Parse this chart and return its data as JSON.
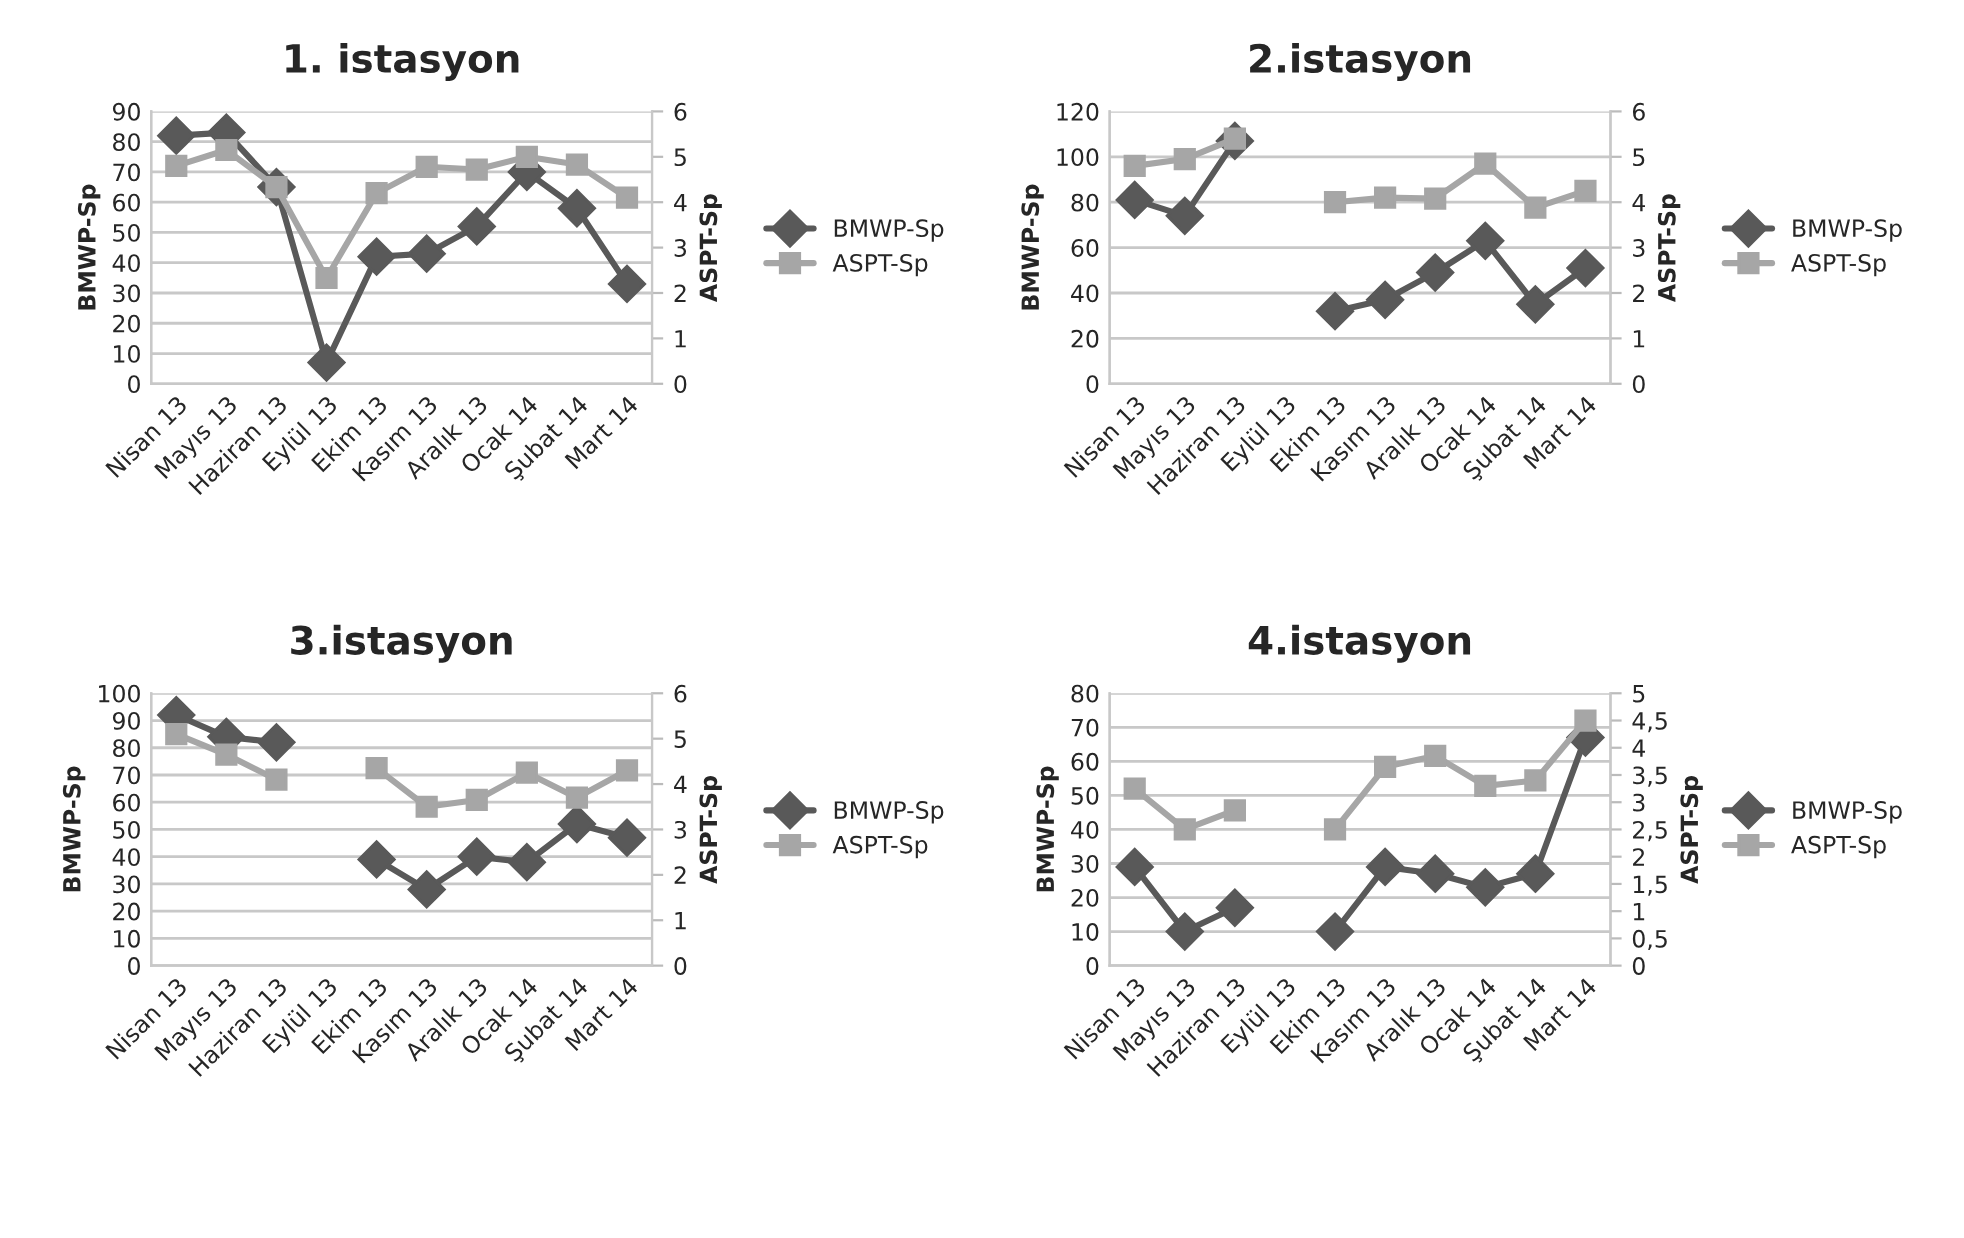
{
  "chart_data": [
    {
      "type": "line",
      "title": "1. istasyon",
      "ylabel": "BMWP-Sp",
      "y2label": "ASPT-Sp",
      "categories": [
        "Nisan 13",
        "Mayıs 13",
        "Haziran 13",
        "Eylül 13",
        "Ekim 13",
        "Kasım 13",
        "Aralık 13",
        "Ocak 14",
        "Şubat 14",
        "Mart 14"
      ],
      "series": [
        {
          "name": "BMWP-Sp",
          "color": "#595959",
          "marker": "diamond",
          "values": [
            82,
            83,
            65,
            7,
            42,
            43,
            52,
            70,
            58,
            33
          ]
        },
        {
          "name": "ASPT-Sp",
          "color": "#a6a6a6",
          "marker": "square",
          "axis": "y2",
          "values": [
            4.8,
            5.15,
            4.33,
            2.33,
            4.2,
            4.78,
            4.72,
            5.0,
            4.83,
            4.1
          ]
        }
      ],
      "ylim": [
        0,
        90
      ],
      "yticks": [
        0,
        10,
        20,
        30,
        40,
        50,
        60,
        70,
        80,
        90
      ],
      "y2lim": [
        0,
        6
      ],
      "y2ticks": [
        0,
        1,
        2,
        3,
        4,
        5,
        6
      ],
      "grid": "y",
      "legend": "right"
    },
    {
      "type": "line",
      "title": "2.istasyon",
      "ylabel": "BMWP-Sp",
      "y2label": "ASPT-Sp",
      "categories": [
        "Nisan 13",
        "Mayıs 13",
        "Haziran 13",
        "Eylül 13",
        "Ekim 13",
        "Kasım 13",
        "Aralık 13",
        "Ocak 14",
        "Şubat 14",
        "Mart 14"
      ],
      "series": [
        {
          "name": "BMWP-Sp",
          "color": "#595959",
          "marker": "diamond",
          "values": [
            81,
            74,
            107,
            null,
            32,
            37,
            49,
            63,
            35,
            51
          ]
        },
        {
          "name": "ASPT-Sp",
          "color": "#a6a6a6",
          "marker": "square",
          "axis": "y2",
          "values": [
            4.8,
            4.95,
            5.4,
            null,
            4.0,
            4.1,
            4.08,
            4.85,
            3.88,
            4.25
          ]
        }
      ],
      "ylim": [
        0,
        120
      ],
      "yticks": [
        0,
        20,
        40,
        60,
        80,
        100,
        120
      ],
      "y2lim": [
        0,
        6
      ],
      "y2ticks": [
        0,
        1,
        2,
        3,
        4,
        5,
        6
      ],
      "grid": "y",
      "legend": "right"
    },
    {
      "type": "line",
      "title": "3.istasyon",
      "ylabel": "BMWP-Sp",
      "y2label": "ASPT-Sp",
      "categories": [
        "Nisan 13",
        "Mayıs 13",
        "Haziran 13",
        "Eylül 13",
        "Ekim 13",
        "Kasım 13",
        "Aralık 13",
        "Ocak 14",
        "Şubat 14",
        "Mart 14"
      ],
      "series": [
        {
          "name": "BMWP-Sp",
          "color": "#595959",
          "marker": "diamond",
          "values": [
            92,
            84,
            82,
            null,
            39,
            28,
            40,
            38,
            52,
            47
          ]
        },
        {
          "name": "ASPT-Sp",
          "color": "#a6a6a6",
          "marker": "square",
          "axis": "y2",
          "values": [
            5.1,
            4.65,
            4.1,
            null,
            4.35,
            3.5,
            3.65,
            4.25,
            3.7,
            4.3
          ]
        }
      ],
      "ylim": [
        0,
        100
      ],
      "yticks": [
        0,
        10,
        20,
        30,
        40,
        50,
        60,
        70,
        80,
        90,
        100
      ],
      "y2lim": [
        0,
        6
      ],
      "y2ticks": [
        0,
        1,
        2,
        3,
        4,
        5,
        6
      ],
      "grid": "y",
      "legend": "right"
    },
    {
      "type": "line",
      "title": "4.istasyon",
      "ylabel": "BMWP-Sp",
      "y2label": "ASPT-Sp",
      "categories": [
        "Nisan 13",
        "Mayıs 13",
        "Haziran 13",
        "Eylül 13",
        "Ekim 13",
        "Kasım 13",
        "Aralık 13",
        "Ocak 14",
        "Şubat 14",
        "Mart 14"
      ],
      "series": [
        {
          "name": "BMWP-Sp",
          "color": "#595959",
          "marker": "diamond",
          "values": [
            29,
            10,
            17,
            null,
            10,
            29,
            27,
            23,
            27,
            67
          ]
        },
        {
          "name": "ASPT-Sp",
          "color": "#a6a6a6",
          "marker": "square",
          "axis": "y2",
          "values": [
            3.25,
            2.5,
            2.85,
            null,
            2.5,
            3.65,
            3.85,
            3.3,
            3.4,
            4.5
          ]
        }
      ],
      "ylim": [
        0,
        80
      ],
      "yticks": [
        0,
        10,
        20,
        30,
        40,
        50,
        60,
        70,
        80
      ],
      "y2lim": [
        0,
        5
      ],
      "y2ticks": [
        0,
        {
          "value": 0.5,
          "label": "0,5"
        },
        1,
        {
          "value": 1.5,
          "label": "1,5"
        },
        2,
        {
          "value": 2.5,
          "label": "2,5"
        },
        3,
        {
          "value": 3.5,
          "label": "3,5"
        },
        4,
        {
          "value": 4.5,
          "label": "4,5"
        },
        5
      ],
      "grid": "y",
      "legend": "right"
    }
  ]
}
